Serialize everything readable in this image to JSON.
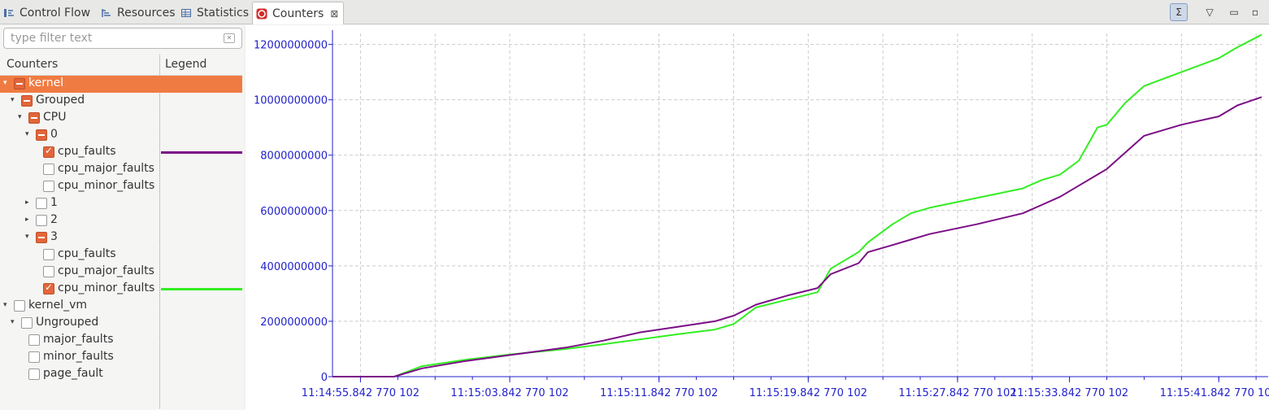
{
  "tabs": [
    {
      "label": "Control Flow",
      "icon": "control-flow-icon"
    },
    {
      "label": "Resources",
      "icon": "resources-icon"
    },
    {
      "label": "Statistics",
      "icon": "statistics-icon"
    },
    {
      "label": "Counters",
      "icon": "counters-icon",
      "close": "⊠"
    }
  ],
  "toolbar": {
    "sigma": "Σ",
    "menu": "▽",
    "minimize": "▭",
    "maximize": "▫"
  },
  "filter": {
    "placeholder": "type filter text"
  },
  "tree": {
    "headers": {
      "counters": "Counters",
      "legend": "Legend"
    },
    "items": [
      {
        "label": "kernel",
        "state": "partial",
        "expanded": true,
        "selected": true
      },
      {
        "label": "Grouped",
        "state": "partial",
        "expanded": true
      },
      {
        "label": "CPU",
        "state": "partial",
        "expanded": true
      },
      {
        "label": "0",
        "state": "partial",
        "expanded": true
      },
      {
        "label": "cpu_faults",
        "state": "checked",
        "legend_color": "#7b0e86"
      },
      {
        "label": "cpu_major_faults",
        "state": "unchecked"
      },
      {
        "label": "cpu_minor_faults",
        "state": "unchecked"
      },
      {
        "label": "1",
        "state": "unchecked",
        "expanded": false
      },
      {
        "label": "2",
        "state": "unchecked",
        "expanded": false
      },
      {
        "label": "3",
        "state": "partial",
        "expanded": true
      },
      {
        "label": "cpu_faults",
        "state": "unchecked"
      },
      {
        "label": "cpu_major_faults",
        "state": "unchecked"
      },
      {
        "label": "cpu_minor_faults",
        "state": "checked",
        "legend_color": "#33ee22"
      },
      {
        "label": "kernel_vm",
        "state": "unchecked",
        "expanded": true
      },
      {
        "label": "Ungrouped",
        "state": "unchecked",
        "expanded": true
      },
      {
        "label": "major_faults",
        "state": "unchecked"
      },
      {
        "label": "minor_faults",
        "state": "unchecked"
      },
      {
        "label": "page_fault",
        "state": "unchecked"
      }
    ]
  },
  "chart_data": {
    "type": "line",
    "title": "",
    "xlabel": "",
    "ylabel": "",
    "ylim": [
      0,
      12400000000
    ],
    "yticks": [
      0,
      2000000000,
      4000000000,
      6000000000,
      8000000000,
      10000000000,
      12000000000
    ],
    "ytick_labels": [
      "0",
      "2000000000",
      "4000000000",
      "6000000000",
      "8000000000",
      "10000000000",
      "12000000000"
    ],
    "xticks": [
      0,
      8,
      16,
      24,
      32,
      38,
      46
    ],
    "xtick_labels": [
      "11:14:55.842 770 102",
      "11:15:03.842 770 102",
      "11:15:11.842 770 102",
      "11:15:19.842 770 102",
      "11:15:27.842 770 102",
      "11:15:33.842 770 102",
      "11:15:41.842 770 102"
    ],
    "xlim": [
      -1.5,
      48.3
    ],
    "grid": true,
    "colors": {
      "axis": "#2222cc",
      "grid": "#cccccc"
    },
    "series": [
      {
        "color": "#33ee22",
        "x": [
          -1.5,
          1.8,
          3.3,
          5.5,
          8,
          11,
          13,
          15,
          17,
          19,
          20,
          21.2,
          23,
          24.5,
          25.2,
          26.7,
          27.2,
          28.5,
          29.5,
          30.5,
          33,
          35.5,
          36.5,
          37.5,
          38.5,
          39.5,
          40,
          41,
          42,
          44,
          46,
          47,
          48.3
        ],
        "y": [
          0,
          0,
          380000000,
          600000000,
          800000000,
          1000000000,
          1170000000,
          1350000000,
          1530000000,
          1700000000,
          1900000000,
          2500000000,
          2800000000,
          3050000000,
          3900000000,
          4500000000,
          4850000000,
          5500000000,
          5900000000,
          6100000000,
          6450000000,
          6800000000,
          7100000000,
          7300000000,
          7800000000,
          9000000000,
          9100000000,
          9900000000,
          10500000000,
          11000000000,
          11500000000,
          11900000000,
          12350000000
        ]
      },
      {
        "color": "#7b0e86",
        "x": [
          -1.5,
          1.8,
          3.3,
          5.5,
          8,
          11,
          13,
          15,
          17,
          19,
          20,
          21.2,
          23,
          24.5,
          25.2,
          26.7,
          27.2,
          28.5,
          29.5,
          30.5,
          33,
          35.5,
          36.5,
          37.5,
          38.5,
          39.5,
          40,
          41,
          42,
          44,
          46,
          47,
          48.3
        ],
        "y": [
          0,
          0,
          300000000,
          550000000,
          780000000,
          1050000000,
          1300000000,
          1600000000,
          1800000000,
          2000000000,
          2200000000,
          2600000000,
          2950000000,
          3200000000,
          3700000000,
          4100000000,
          4500000000,
          4750000000,
          4950000000,
          5150000000,
          5500000000,
          5900000000,
          6200000000,
          6500000000,
          6900000000,
          7300000000,
          7500000000,
          8100000000,
          8700000000,
          9100000000,
          9400000000,
          9800000000,
          10100000000
        ]
      }
    ]
  }
}
